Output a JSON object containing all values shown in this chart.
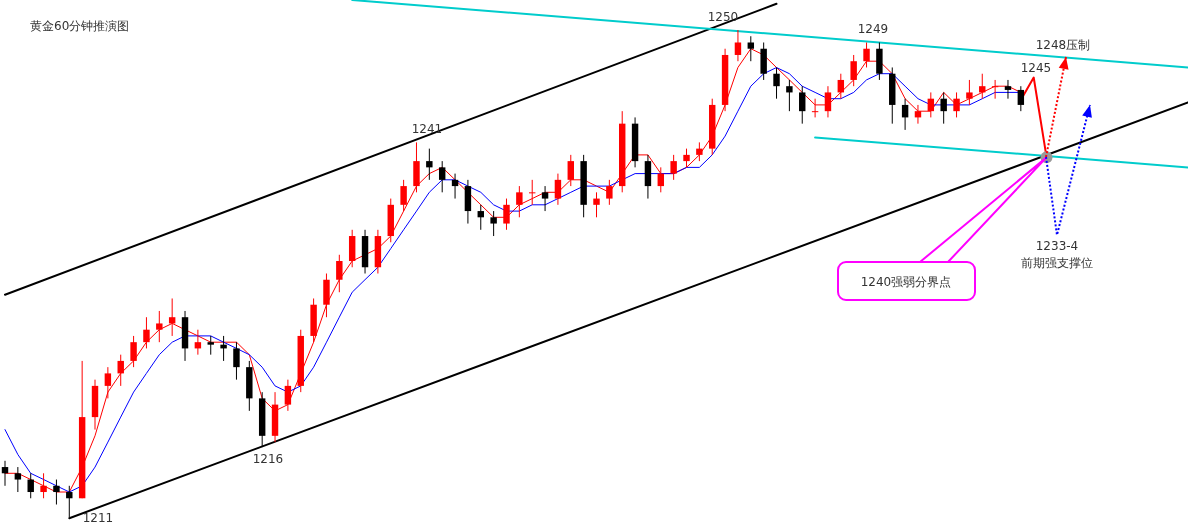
{
  "chart_data": {
    "type": "candlestick",
    "title": "黄金60分钟推演图",
    "categories": [
      null,
      null,
      null,
      null,
      null,
      null,
      null,
      null,
      null,
      null,
      null,
      null,
      null,
      null,
      null,
      null,
      null,
      null,
      null,
      null,
      null,
      null,
      null,
      null,
      null,
      null,
      null,
      null,
      null,
      null,
      null,
      null,
      null,
      null,
      null,
      null,
      null,
      null,
      null,
      null,
      null,
      null,
      null,
      null,
      null,
      null,
      null,
      null,
      null,
      null,
      null,
      null,
      null,
      null,
      null,
      null,
      null,
      null,
      null,
      null,
      null,
      null,
      null,
      null,
      null,
      null,
      null,
      null,
      null,
      null,
      null,
      null,
      null,
      null,
      null,
      null,
      null,
      null,
      null,
      null,
      null,
      null,
      null,
      null,
      null,
      null,
      null,
      null,
      null,
      null,
      null,
      null,
      null
    ],
    "ohlc": [
      [
        1215,
        1215.5,
        1213.5,
        1214.5
      ],
      [
        1214.5,
        1215,
        1213,
        1214
      ],
      [
        1214,
        1214.5,
        1212.5,
        1213
      ],
      [
        1213,
        1214.5,
        1212.5,
        1213.5
      ],
      [
        1213.5,
        1214,
        1212,
        1213
      ],
      [
        1213,
        1213.5,
        1211,
        1212.5
      ],
      [
        1212.5,
        1223.5,
        1212.5,
        1219
      ],
      [
        1219,
        1222,
        1218,
        1221.5
      ],
      [
        1221.5,
        1223,
        1220.5,
        1222.5
      ],
      [
        1222.5,
        1224,
        1221.5,
        1223.5
      ],
      [
        1223.5,
        1225.5,
        1223,
        1225
      ],
      [
        1225,
        1227,
        1224.5,
        1226
      ],
      [
        1226,
        1227.5,
        1225,
        1226.5
      ],
      [
        1226.5,
        1228.5,
        1225.5,
        1227
      ],
      [
        1227,
        1227.5,
        1223.5,
        1224.5
      ],
      [
        1224.5,
        1226,
        1224,
        1225
      ],
      [
        1225,
        1225.5,
        1224,
        1224.8
      ],
      [
        1224.8,
        1225.5,
        1223.5,
        1224.5
      ],
      [
        1224.5,
        1225,
        1222,
        1223
      ],
      [
        1223,
        1223.5,
        1219.5,
        1220.5
      ],
      [
        1220.5,
        1221,
        1216.6,
        1217.5
      ],
      [
        1217.5,
        1221,
        1217,
        1220
      ],
      [
        1220,
        1222,
        1219.5,
        1221.5
      ],
      [
        1221.5,
        1226,
        1221,
        1225.5
      ],
      [
        1225.5,
        1228.5,
        1225,
        1228
      ],
      [
        1228,
        1230.5,
        1227,
        1230
      ],
      [
        1230,
        1232,
        1229,
        1231.5
      ],
      [
        1231.5,
        1234,
        1231,
        1233.5
      ],
      [
        1233.5,
        1234,
        1230.5,
        1231
      ],
      [
        1231,
        1234,
        1230.5,
        1233.5
      ],
      [
        1233.5,
        1236.5,
        1233,
        1236
      ],
      [
        1236,
        1238,
        1235.5,
        1237.5
      ],
      [
        1237.5,
        1241,
        1237,
        1239.5
      ],
      [
        1239.5,
        1240.5,
        1238,
        1239
      ],
      [
        1239,
        1239.5,
        1237,
        1238
      ],
      [
        1238,
        1238.5,
        1236.5,
        1237.5
      ],
      [
        1237.5,
        1238,
        1234.5,
        1235.5
      ],
      [
        1235.5,
        1236,
        1234,
        1235
      ],
      [
        1235,
        1235.5,
        1233.5,
        1234.5
      ],
      [
        1234.5,
        1236.5,
        1234,
        1236
      ],
      [
        1236,
        1237.5,
        1235,
        1237
      ],
      [
        1237,
        1238,
        1236,
        1237
      ],
      [
        1237,
        1237.5,
        1235.5,
        1236.5
      ],
      [
        1236.5,
        1238.5,
        1236,
        1238
      ],
      [
        1238,
        1240,
        1237.5,
        1239.5
      ],
      [
        1239.5,
        1240,
        1235,
        1236
      ],
      [
        1236,
        1237,
        1235,
        1236.5
      ],
      [
        1236.5,
        1238,
        1236,
        1237.5
      ],
      [
        1237.5,
        1243.5,
        1237,
        1242.5
      ],
      [
        1242.5,
        1243,
        1239,
        1239.5
      ],
      [
        1239.5,
        1240,
        1236.5,
        1237.5
      ],
      [
        1237.5,
        1239,
        1237,
        1238.5
      ],
      [
        1238.5,
        1240,
        1238,
        1239.5
      ],
      [
        1239.5,
        1240.5,
        1239,
        1240
      ],
      [
        1240,
        1241,
        1239.5,
        1240.5
      ],
      [
        1240.5,
        1244.5,
        1240,
        1244
      ],
      [
        1244,
        1248.5,
        1243.5,
        1248
      ],
      [
        1248,
        1250,
        1247.5,
        1249
      ],
      [
        1249,
        1249.5,
        1247.5,
        1248.5
      ],
      [
        1248.5,
        1249,
        1246,
        1246.5
      ],
      [
        1246.5,
        1247,
        1244.5,
        1245.5
      ],
      [
        1245.5,
        1246,
        1243.5,
        1245
      ],
      [
        1245,
        1245.5,
        1242.5,
        1243.5
      ],
      [
        1243.5,
        1244.5,
        1243,
        1243.5
      ],
      [
        1243.5,
        1245.5,
        1243,
        1245
      ],
      [
        1245,
        1246.5,
        1244.5,
        1246
      ],
      [
        1246,
        1248,
        1245.5,
        1247.5
      ],
      [
        1247.5,
        1249,
        1247,
        1248.5
      ],
      [
        1248.5,
        1249,
        1246,
        1246.5
      ],
      [
        1246.5,
        1247,
        1242.5,
        1244
      ],
      [
        1244,
        1244.5,
        1242,
        1243
      ],
      [
        1243,
        1244,
        1242.5,
        1243.5
      ],
      [
        1243.5,
        1245,
        1243,
        1244.5
      ],
      [
        1244.5,
        1245,
        1242.5,
        1243.5
      ],
      [
        1243.5,
        1245,
        1243,
        1244.5
      ],
      [
        1244.5,
        1246,
        1244,
        1245
      ],
      [
        1245,
        1246.5,
        1244.5,
        1245.5
      ],
      [
        1245.5,
        1246,
        1244.5,
        1245.5
      ],
      [
        1245.5,
        1246,
        1244.5,
        1245.2
      ],
      [
        1245.2,
        1245.5,
        1243.5,
        1244
      ],
      null,
      null,
      null,
      null,
      null,
      null,
      null,
      null,
      null,
      null,
      null,
      null,
      null
    ],
    "series": [
      {
        "type": "line",
        "color": "#ff0000",
        "values": [
          1214.5,
          1214.5,
          1214,
          1213.5,
          1213,
          1213,
          1215,
          1217.5,
          1221,
          1222.5,
          1223.5,
          1225,
          1226,
          1226.5,
          1226,
          1225.5,
          1225,
          1225,
          1225,
          1224,
          1220.5,
          1219.5,
          1220,
          1222.5,
          1225,
          1228,
          1230,
          1231.5,
          1232,
          1232.5,
          1233.5,
          1235.5,
          1237.5,
          1238.5,
          1239,
          1238,
          1237,
          1236,
          1235,
          1235,
          1236,
          1236.5,
          1237,
          1237,
          1238,
          1238,
          1237.5,
          1237,
          1238.5,
          1240,
          1240,
          1238.5,
          1238.5,
          1239,
          1240,
          1241.5,
          1244,
          1247,
          1248.5,
          1248,
          1247,
          1246,
          1245,
          1244,
          1244,
          1245,
          1246,
          1247.5,
          1247.5,
          1246.5,
          1244.5,
          1243.5,
          1243.5,
          1245,
          1244,
          1244.5,
          1245,
          1245.5,
          1245.5,
          1245,
          null,
          null,
          null,
          null,
          null,
          null,
          null,
          null,
          null,
          null,
          null,
          null,
          null
        ]
      },
      {
        "type": "line",
        "color": "#0000ff",
        "values": [
          1218,
          1216,
          1214.5,
          1214,
          1213.5,
          1213,
          1213.5,
          1215,
          1217,
          1219,
          1221,
          1222.5,
          1224,
          1225,
          1225.5,
          1225.5,
          1225.5,
          1225,
          1224.5,
          1224,
          1223,
          1221.5,
          1221,
          1221.5,
          1223,
          1225,
          1227,
          1229,
          1230,
          1231,
          1232.5,
          1234,
          1235.5,
          1237,
          1238,
          1238,
          1237.5,
          1237,
          1236,
          1235.5,
          1235.5,
          1236,
          1236,
          1236.5,
          1237,
          1237.5,
          1237.5,
          1237.5,
          1238,
          1238.5,
          1238.5,
          1238.5,
          1238.5,
          1239,
          1239,
          1240,
          1241.5,
          1243.5,
          1245.5,
          1246.5,
          1247,
          1246.5,
          1245.5,
          1245,
          1244.5,
          1244.5,
          1245,
          1246,
          1246.5,
          1246.5,
          1245.5,
          1244.5,
          1244,
          1244,
          1244,
          1244,
          1244.5,
          1245,
          1245,
          1245,
          null,
          null,
          null,
          null,
          null,
          null,
          null,
          null,
          null,
          null,
          null,
          null,
          null
        ]
      },
      {
        "type": "line",
        "color": "#000000",
        "values": [
          1228.8,
          null,
          null,
          null,
          null,
          null,
          null,
          null,
          null,
          null,
          null,
          null,
          null,
          null,
          null,
          null,
          null,
          null,
          null,
          null,
          null,
          null,
          null,
          null,
          null,
          null,
          null,
          null,
          null,
          null,
          null,
          null,
          null,
          null,
          null,
          null,
          null,
          null,
          null,
          null,
          null,
          null,
          null,
          null,
          null,
          null,
          null,
          null,
          null,
          null,
          null,
          null,
          null,
          null,
          null,
          null,
          null,
          null,
          null,
          null,
          1252.1,
          null,
          null,
          null,
          null,
          null,
          null,
          null,
          null,
          null,
          null,
          null,
          null,
          null,
          null,
          null,
          null,
          null,
          null,
          null,
          null,
          null,
          null,
          null,
          null,
          null,
          null,
          null,
          null,
          null,
          null,
          null,
          null
        ]
      },
      {
        "type": "line",
        "color": "#000000",
        "values": [
          null,
          null,
          null,
          null,
          null,
          1210.9,
          null,
          null,
          null,
          null,
          null,
          null,
          null,
          null,
          null,
          null,
          null,
          null,
          null,
          null,
          null,
          null,
          null,
          null,
          null,
          null,
          null,
          null,
          null,
          null,
          null,
          null,
          null,
          null,
          null,
          null,
          null,
          null,
          null,
          null,
          null,
          null,
          null,
          null,
          null,
          null,
          null,
          null,
          null,
          null,
          null,
          null,
          null,
          null,
          null,
          null,
          null,
          null,
          null,
          null,
          null,
          null,
          null,
          null,
          null,
          null,
          null,
          null,
          null,
          null,
          null,
          null,
          null,
          null,
          null,
          null,
          null,
          null,
          null,
          null,
          null,
          null,
          null,
          null,
          null,
          null,
          null,
          null,
          null,
          null,
          null,
          null,
          1244.2
        ]
      },
      {
        "type": "line",
        "color": "#00cccc",
        "values": [
          null,
          null,
          null,
          null,
          null,
          null,
          null,
          null,
          null,
          null,
          null,
          null,
          null,
          null,
          null,
          null,
          null,
          null,
          null,
          null,
          null,
          null,
          null,
          null,
          null,
          null,
          null,
          1252.4,
          null,
          null,
          null,
          null,
          null,
          null,
          null,
          null,
          null,
          null,
          null,
          null,
          null,
          null,
          null,
          null,
          null,
          null,
          null,
          null,
          null,
          null,
          null,
          null,
          null,
          null,
          null,
          null,
          null,
          null,
          null,
          null,
          null,
          null,
          null,
          null,
          null,
          null,
          null,
          null,
          null,
          null,
          null,
          null,
          null,
          null,
          null,
          null,
          null,
          null,
          null,
          null,
          null,
          null,
          null,
          null,
          null,
          null,
          null,
          null,
          null,
          null,
          null,
          null,
          1247
        ]
      },
      {
        "type": "line",
        "color": "#00cccc",
        "values": [
          null,
          null,
          null,
          null,
          null,
          null,
          null,
          null,
          null,
          null,
          null,
          null,
          null,
          null,
          null,
          null,
          null,
          null,
          null,
          null,
          null,
          null,
          null,
          null,
          null,
          null,
          null,
          null,
          null,
          null,
          null,
          null,
          null,
          null,
          null,
          null,
          null,
          null,
          null,
          null,
          null,
          null,
          null,
          null,
          null,
          null,
          null,
          null,
          null,
          null,
          null,
          null,
          null,
          null,
          null,
          null,
          null,
          null,
          null,
          null,
          null,
          null,
          null,
          1241.4,
          null,
          null,
          null,
          null,
          null,
          null,
          null,
          null,
          null,
          null,
          null,
          null,
          null,
          null,
          null,
          null,
          null,
          null,
          null,
          null,
          null,
          null,
          null,
          null,
          null,
          null,
          null,
          null,
          1239
        ]
      },
      {
        "type": "line",
        "color": "#ff0000",
        "values": [
          null,
          null,
          null,
          null,
          null,
          null,
          null,
          null,
          null,
          null,
          null,
          null,
          null,
          null,
          null,
          null,
          null,
          null,
          null,
          null,
          null,
          null,
          null,
          null,
          null,
          null,
          null,
          null,
          null,
          null,
          null,
          null,
          null,
          null,
          null,
          null,
          null,
          null,
          null,
          null,
          null,
          null,
          null,
          null,
          null,
          null,
          null,
          null,
          null,
          null,
          null,
          null,
          null,
          null,
          null,
          null,
          null,
          null,
          null,
          null,
          null,
          null,
          null,
          null,
          null,
          null,
          null,
          null,
          null,
          null,
          null,
          null,
          null,
          null,
          null,
          null,
          null,
          null,
          null,
          1244.4,
          1246.2,
          1239.8,
          null,
          null,
          null,
          null,
          null,
          null,
          null,
          null,
          null,
          null,
          null
        ]
      },
      {
        "type": "scatter",
        "color": "#999999",
        "marker": "circle",
        "values": [
          null,
          null,
          null,
          null,
          null,
          null,
          null,
          null,
          null,
          null,
          null,
          null,
          null,
          null,
          null,
          null,
          null,
          null,
          null,
          null,
          null,
          null,
          null,
          null,
          null,
          null,
          null,
          null,
          null,
          null,
          null,
          null,
          null,
          null,
          null,
          null,
          null,
          null,
          null,
          null,
          null,
          null,
          null,
          null,
          null,
          null,
          null,
          null,
          null,
          null,
          null,
          null,
          null,
          null,
          null,
          null,
          null,
          null,
          null,
          null,
          null,
          null,
          null,
          null,
          null,
          null,
          null,
          null,
          null,
          null,
          null,
          null,
          null,
          null,
          null,
          null,
          null,
          null,
          null,
          null,
          null,
          1239.8,
          null,
          null,
          null,
          null,
          null,
          null,
          null,
          null,
          null,
          null,
          null
        ]
      }
    ],
    "annotations": [
      "1211",
      "1216",
      "1241",
      "1250",
      "1249",
      "1245",
      "1248压制",
      "1233-4",
      "前期强支撑位",
      "1240强弱分界点"
    ]
  }
}
